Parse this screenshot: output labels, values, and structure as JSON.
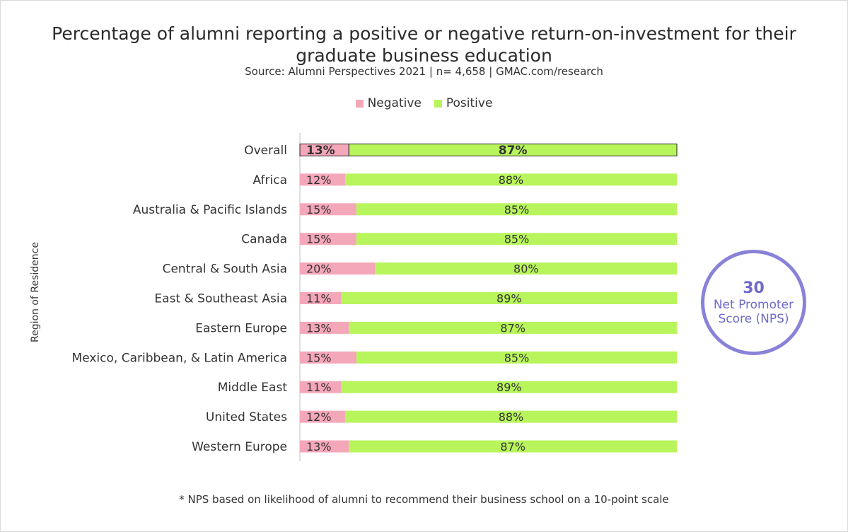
{
  "colors": {
    "negative": "#f4a7b9",
    "positive": "#b8f55c",
    "nps": "#8882d9"
  },
  "legend": {
    "negative_label": "Negative",
    "positive_label": "Positive"
  },
  "nps": {
    "value": "30",
    "label_line1": "Net Promoter",
    "label_line2": "Score (NPS)"
  },
  "footnote": "* NPS based on likelihood of alumni to recommend their business school on a 10-point scale",
  "chart_data": {
    "type": "bar",
    "orientation": "horizontal",
    "stacked": true,
    "title_line1": "Percentage of alumni reporting a positive or negative return-on-investment for their",
    "title_line2": "graduate business education",
    "subtitle": "Source: Alumni Perspectives 2021 | n= 4,658 | GMAC.com/research",
    "ylabel": "Region of Residence",
    "xlim": [
      0,
      100
    ],
    "legend_position": "top",
    "categories": [
      "Overall",
      "Africa",
      "Australia & Pacific Islands",
      "Canada",
      "Central & South Asia",
      "East & Southeast Asia",
      "Eastern Europe",
      "Mexico, Caribbean, & Latin America",
      "Middle East",
      "United States",
      "Western Europe"
    ],
    "series": [
      {
        "name": "Negative",
        "values": [
          13,
          12,
          15,
          15,
          20,
          11,
          13,
          15,
          11,
          12,
          13
        ],
        "labels": [
          "13%",
          "12%",
          "15%",
          "15%",
          "20%",
          "11%",
          "13%",
          "15%",
          "11%",
          "12%",
          "13%"
        ]
      },
      {
        "name": "Positive",
        "values": [
          87,
          88,
          85,
          85,
          80,
          89,
          87,
          85,
          89,
          88,
          87
        ],
        "labels": [
          "87%",
          "88%",
          "85%",
          "85%",
          "80%",
          "89%",
          "87%",
          "85%",
          "89%",
          "88%",
          "87%"
        ]
      }
    ]
  }
}
